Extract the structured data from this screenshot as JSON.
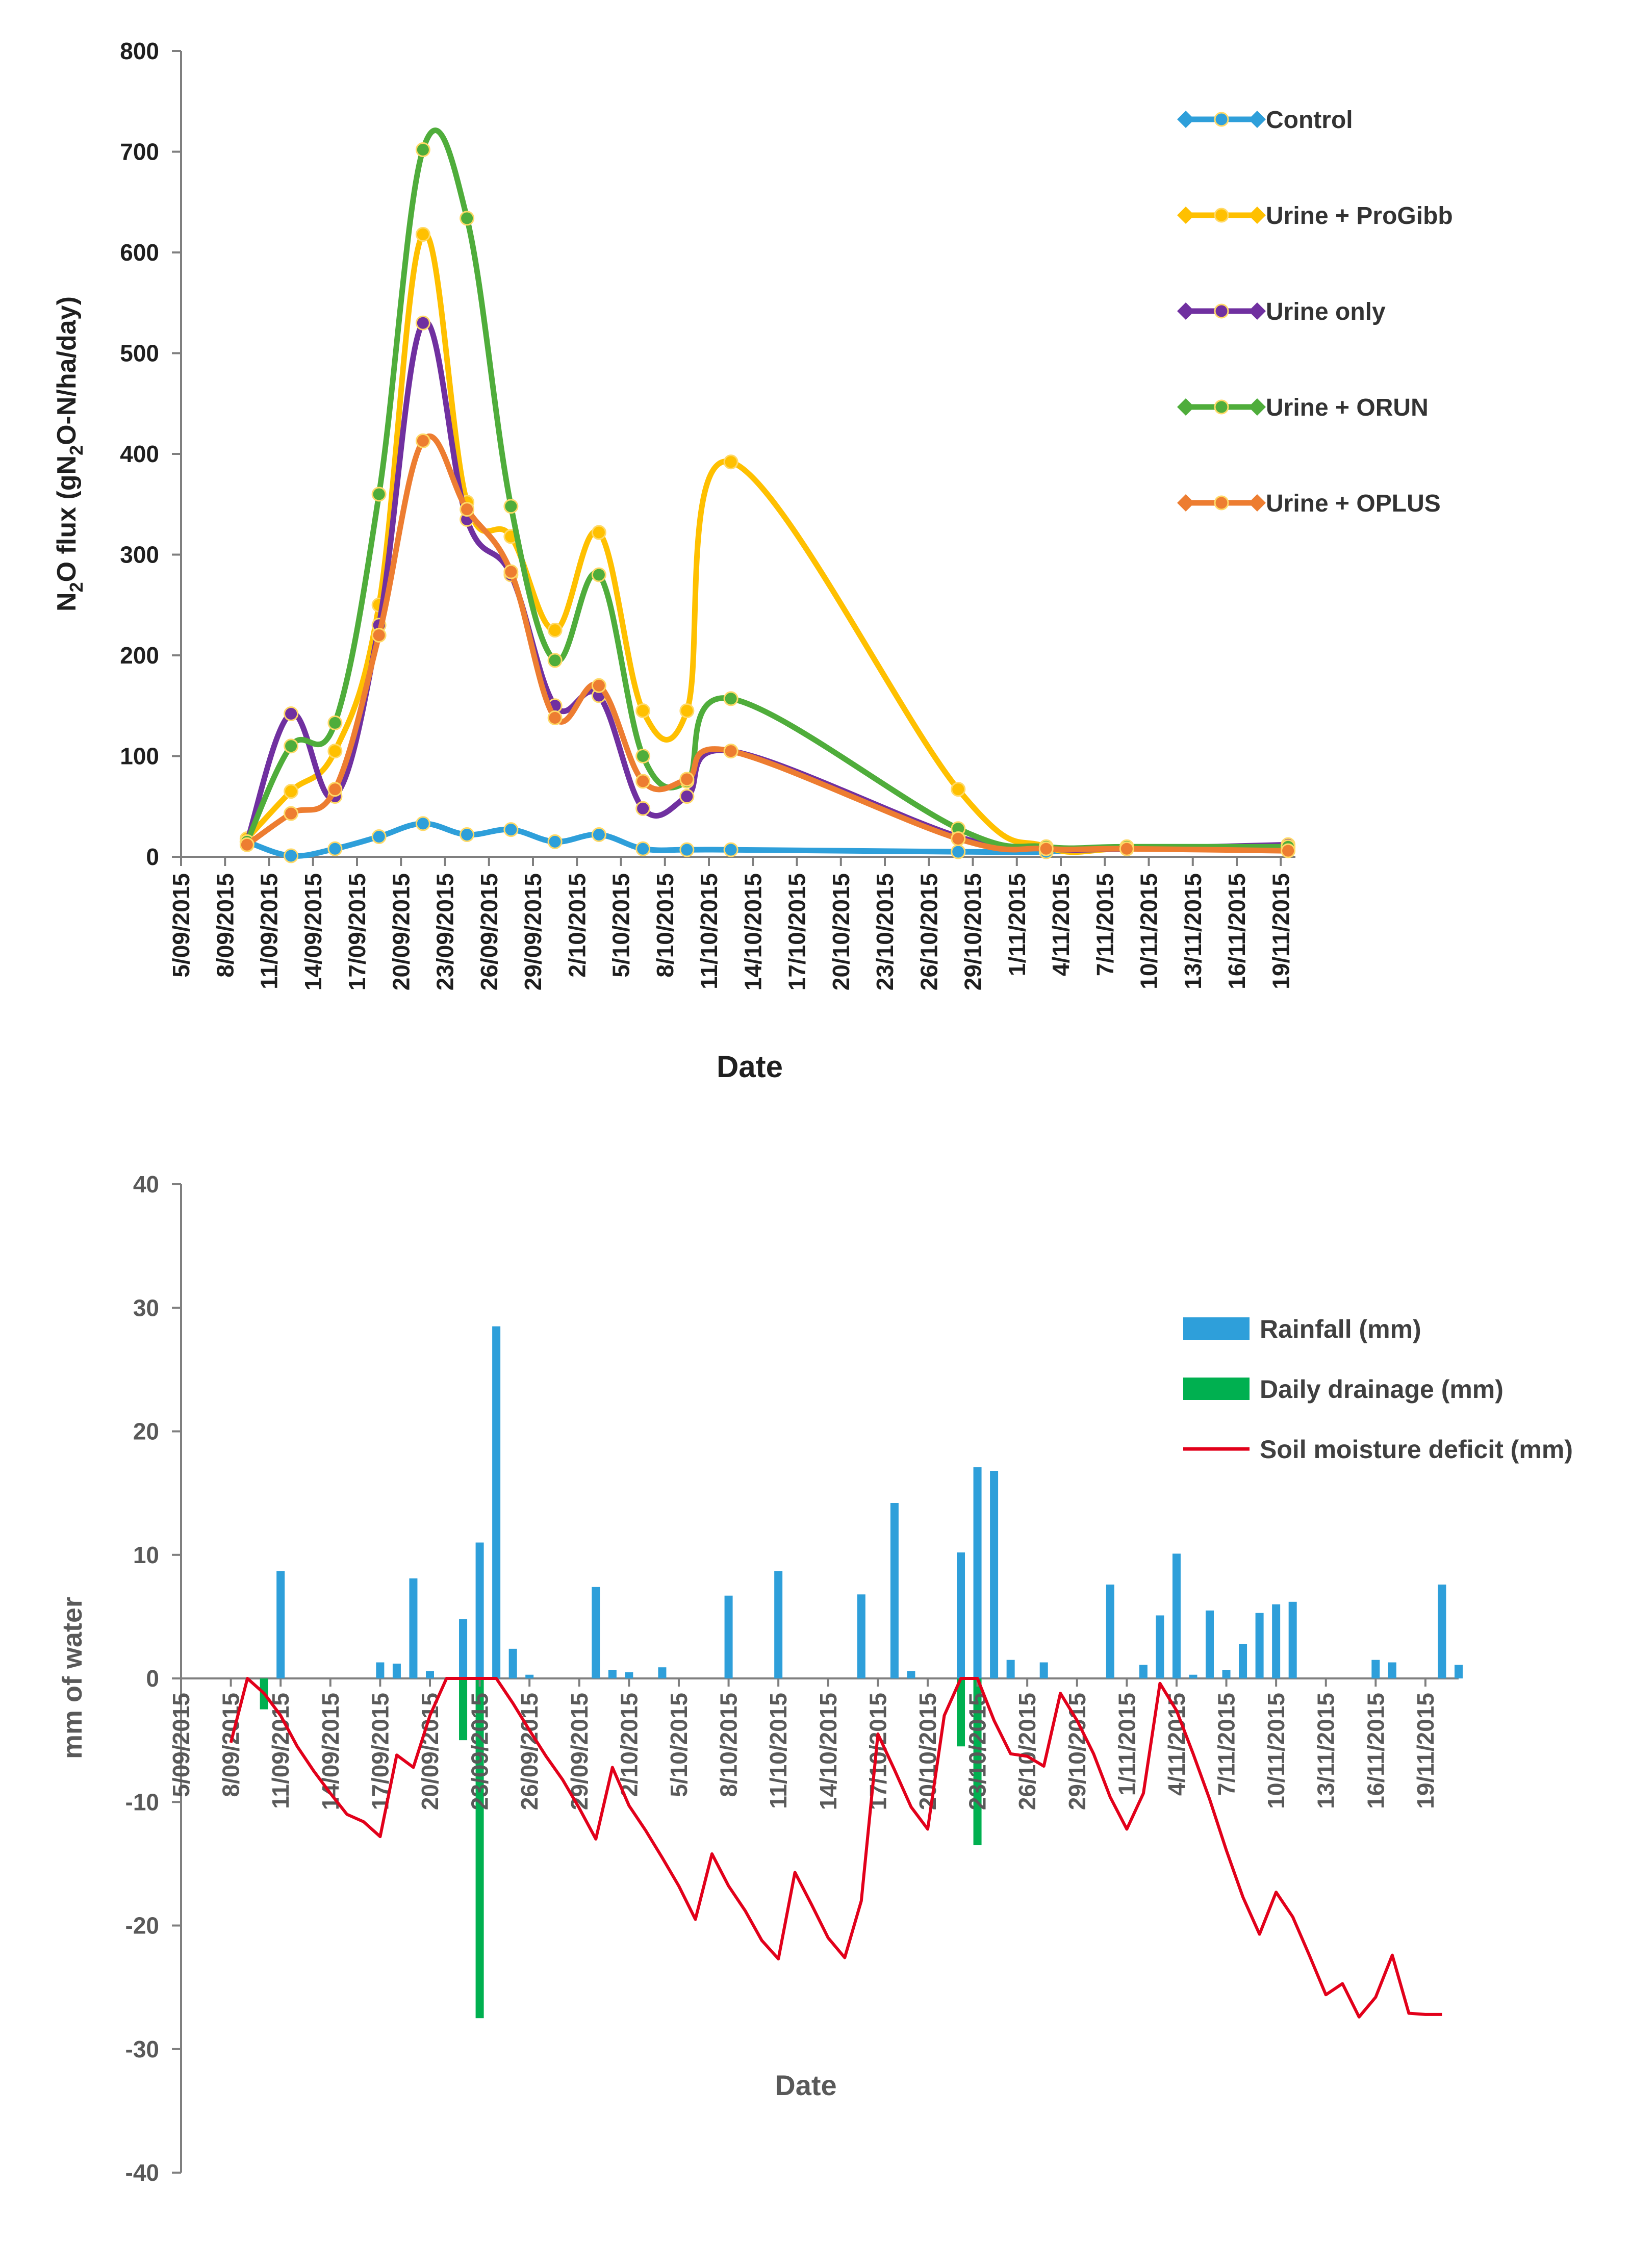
{
  "chart_data": [
    {
      "type": "line",
      "title": "",
      "ylabel_parts": [
        "N",
        "2",
        "O flux (gN",
        "2",
        "O-N/ha/day)"
      ],
      "xlabel": "Date",
      "ylim": [
        0,
        800
      ],
      "yticks": [
        0,
        100,
        200,
        300,
        400,
        500,
        600,
        700,
        800
      ],
      "xlim_day": [
        0,
        76
      ],
      "xtick_labels": [
        "5/09/2015",
        "8/09/2015",
        "11/09/2015",
        "14/09/2015",
        "17/09/2015",
        "20/09/2015",
        "23/09/2015",
        "26/09/2015",
        "29/09/2015",
        "2/10/2015",
        "5/10/2015",
        "8/10/2015",
        "11/10/2015",
        "14/10/2015",
        "17/10/2015",
        "20/10/2015",
        "23/10/2015",
        "26/10/2015",
        "29/10/2015",
        "1/11/2015",
        "4/11/2015",
        "7/11/2015",
        "10/11/2015",
        "13/11/2015",
        "16/11/2015",
        "19/11/2015"
      ],
      "x_day": [
        4.5,
        7.5,
        10.5,
        13.5,
        16.5,
        19.5,
        22.5,
        25.5,
        28.5,
        31.5,
        34.5,
        37.5,
        53.0,
        59.0,
        64.5,
        75.5
      ],
      "legend_position": "right",
      "series": [
        {
          "name": "Control",
          "color": "#2e9fda",
          "values": [
            15,
            1,
            8,
            20,
            33,
            22,
            27,
            15,
            22,
            8,
            7,
            7,
            5,
            5,
            9,
            9
          ]
        },
        {
          "name": "Urine + ProGibb",
          "color": "#ffc000",
          "values": [
            18,
            65,
            105,
            250,
            618,
            352,
            318,
            225,
            322,
            145,
            145,
            392,
            67,
            10,
            8,
            10
          ]
        },
        {
          "name": "Urine only",
          "color": "#7030a0",
          "values": [
            15,
            142,
            60,
            230,
            530,
            335,
            280,
            150,
            160,
            48,
            60,
            105,
            20,
            8,
            8,
            12
          ]
        },
        {
          "name": "Urine + ORUN",
          "color": "#4fad3b",
          "values": [
            15,
            110,
            133,
            360,
            702,
            634,
            348,
            195,
            280,
            100,
            75,
            157,
            28,
            10,
            10,
            10
          ]
        },
        {
          "name": "Urine + OPLUS",
          "color": "#ed7d31",
          "values": [
            12,
            43,
            67,
            220,
            413,
            345,
            283,
            138,
            170,
            75,
            77,
            105,
            18,
            8,
            8,
            6
          ]
        }
      ]
    },
    {
      "type": "bar",
      "title": "",
      "ylabel": "mm of water",
      "xlabel": "Date",
      "ylim": [
        -40,
        40
      ],
      "yticks": [
        -40,
        -30,
        -20,
        -10,
        0,
        10,
        20,
        30,
        40
      ],
      "xlim_day": [
        0,
        77
      ],
      "xtick_labels": [
        "5/09/2015",
        "8/09/2015",
        "11/09/2015",
        "14/09/2015",
        "17/09/2015",
        "20/09/2015",
        "23/09/2015",
        "26/09/2015",
        "29/09/2015",
        "2/10/2015",
        "5/10/2015",
        "8/10/2015",
        "11/10/2015",
        "14/10/2015",
        "17/10/2015",
        "20/10/2015",
        "23/10/2015",
        "26/10/2015",
        "29/10/2015",
        "1/11/2015",
        "4/11/2015",
        "7/11/2015",
        "10/11/2015",
        "13/11/2015",
        "16/11/2015",
        "19/11/2015"
      ],
      "legend_position": "top-right",
      "series": [
        {
          "name": "Rainfall (mm)",
          "kind": "bar",
          "color": "#2e9fda",
          "x_day": [
            6,
            12,
            13,
            14,
            15,
            17,
            18,
            19,
            20,
            21,
            25,
            26,
            27,
            29,
            33,
            36,
            41,
            43,
            44,
            47,
            48,
            49,
            50,
            52,
            56,
            58,
            59,
            60,
            61,
            62,
            63,
            64,
            65,
            66,
            67,
            72,
            73,
            76,
            77
          ],
          "values": [
            8.7,
            1.3,
            1.2,
            8.1,
            0.6,
            4.8,
            11.0,
            28.5,
            2.4,
            0.3,
            7.4,
            0.7,
            0.5,
            0.9,
            6.7,
            8.7,
            6.8,
            14.2,
            0.6,
            10.2,
            17.1,
            16.8,
            1.5,
            1.3,
            7.6,
            1.1,
            5.1,
            10.1,
            0.3,
            5.5,
            0.7,
            2.8,
            5.3,
            6.0,
            6.2,
            1.5,
            1.3,
            7.6,
            1.1
          ]
        },
        {
          "name": "Daily drainage (mm)",
          "kind": "bar",
          "color": "#00b050",
          "x_day": [
            5,
            17,
            18,
            47,
            48
          ],
          "values": [
            -2.5,
            -5.0,
            -27.5,
            -5.5,
            -13.5
          ]
        },
        {
          "name": "Soil moisture deficit (mm)",
          "kind": "line",
          "color": "#e2001a",
          "x_day": [
            3,
            4,
            5,
            6,
            7,
            8,
            9,
            10,
            11,
            12,
            13,
            14,
            15,
            16,
            17,
            18,
            19,
            20,
            21,
            22,
            23,
            24,
            25,
            26,
            27,
            28,
            29,
            30,
            31,
            32,
            33,
            34,
            35,
            36,
            37,
            38,
            39,
            40,
            41,
            42,
            43,
            44,
            45,
            46,
            47,
            48,
            49,
            50,
            51,
            52,
            53,
            54,
            55,
            56,
            57,
            58,
            59,
            60,
            61,
            62,
            63,
            64,
            65,
            66,
            67,
            68,
            69,
            70,
            71,
            72,
            73,
            74,
            75,
            76
          ],
          "values": [
            -5.2,
            0.0,
            -1.2,
            -3.0,
            -5.5,
            -7.5,
            -9.3,
            -11.0,
            -11.6,
            -12.8,
            -6.2,
            -7.2,
            -3.0,
            0.0,
            0.0,
            0.0,
            0.0,
            -2.0,
            -4.2,
            -6.3,
            -8.2,
            -10.5,
            -13.0,
            -7.2,
            -10.3,
            -12.3,
            -14.5,
            -16.8,
            -19.5,
            -14.2,
            -16.8,
            -18.8,
            -21.2,
            -22.7,
            -15.7,
            -18.3,
            -21.0,
            -22.6,
            -18.0,
            -4.5,
            -7.4,
            -10.4,
            -12.2,
            -3.0,
            0.0,
            0.0,
            -3.4,
            -6.1,
            -6.3,
            -7.1,
            -1.2,
            -3.4,
            -6.1,
            -9.6,
            -12.2,
            -9.3,
            -0.4,
            -2.6,
            -6.1,
            -9.8,
            -13.9,
            -17.7,
            -20.7,
            -17.3,
            -19.3,
            -22.4,
            -25.6,
            -24.7,
            -27.4,
            -25.8,
            -22.4,
            -27.1,
            -27.2,
            -27.2
          ]
        }
      ]
    }
  ]
}
